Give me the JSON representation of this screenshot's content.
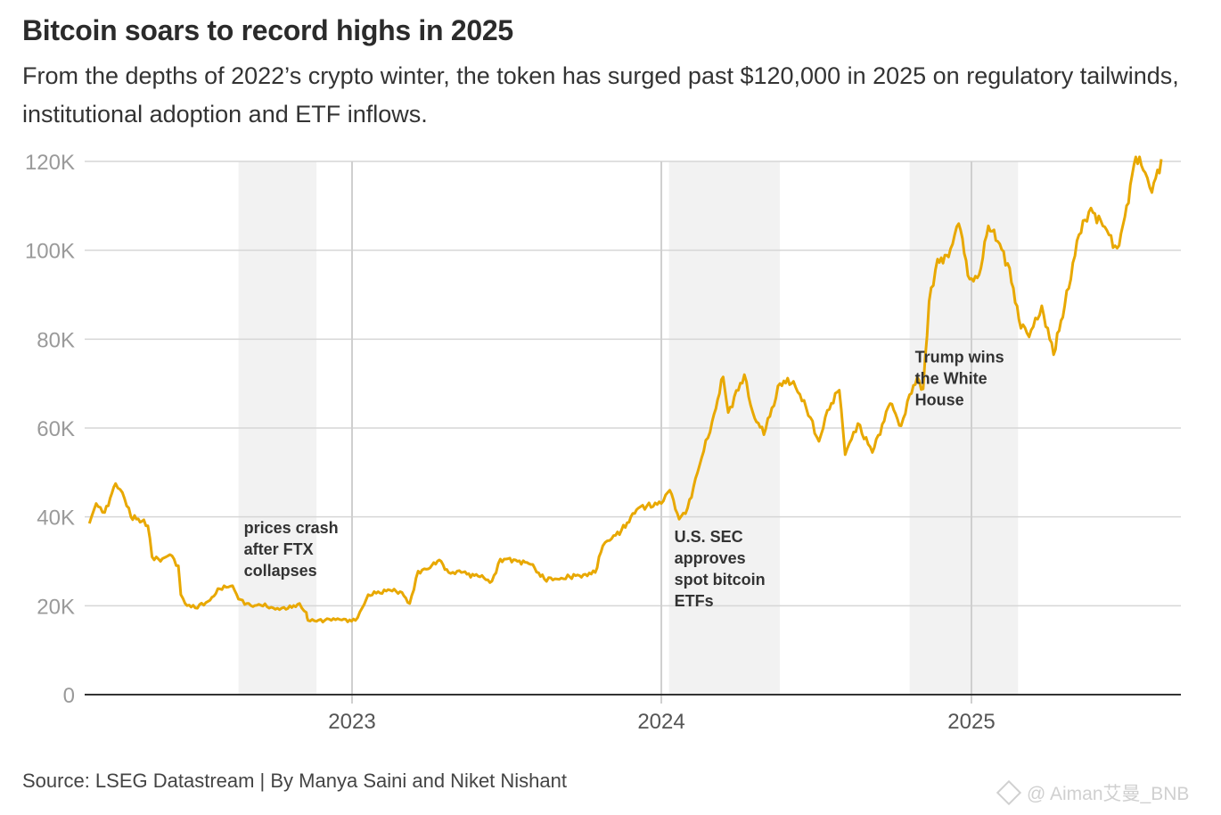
{
  "title": "Bitcoin soars to record highs in 2025",
  "subtitle": "From the depths of 2022’s crypto winter, the token has surged past $120,000 in 2025 on regulatory tailwinds, institutional adoption and ETF inflows.",
  "source": "Source: LSEG Datastream | By Manya Saini and Niket Nishant",
  "watermark": "@ Aiman艾曼_BNB",
  "watermark_icon": "binance-diamond-icon",
  "colors": {
    "line": "#e8a800",
    "shade": "#f2f2f2",
    "grid": "#d6d6d6",
    "axis": "#333333",
    "tick_text": "#9a9a9a"
  },
  "chart_data": {
    "type": "line",
    "title": "Bitcoin soars to record highs in 2025",
    "ylim": [
      0,
      120000
    ],
    "y_ticks": [
      {
        "value": 0,
        "label": "0"
      },
      {
        "value": 20000,
        "label": "20K"
      },
      {
        "value": 40000,
        "label": "40K"
      },
      {
        "value": 60000,
        "label": "60K"
      },
      {
        "value": 80000,
        "label": "80K"
      },
      {
        "value": 100000,
        "label": "100K"
      },
      {
        "value": 120000,
        "label": "120K"
      }
    ],
    "x_range": [
      "2022-02-20",
      "2025-08-15"
    ],
    "x_ticks": [
      {
        "date": "2023-01-01",
        "label": "2023"
      },
      {
        "date": "2024-01-01",
        "label": "2024"
      },
      {
        "date": "2025-01-01",
        "label": "2025"
      }
    ],
    "grid": true,
    "shaded_periods": [
      {
        "start": "2022-08-20",
        "end": "2022-11-20"
      },
      {
        "start": "2024-01-10",
        "end": "2024-05-20"
      },
      {
        "start": "2024-10-20",
        "end": "2025-02-25"
      }
    ],
    "annotations": [
      {
        "date": "2022-08-20",
        "value": 37500,
        "lines": [
          "prices crash",
          "after FTX",
          "collapses"
        ]
      },
      {
        "date": "2024-01-10",
        "value": 35500,
        "lines": [
          "U.S. SEC",
          "approves",
          "spot bitcoin",
          "ETFs"
        ]
      },
      {
        "date": "2024-10-20",
        "value": 76000,
        "lines": [
          "Trump wins",
          "the White",
          "House"
        ]
      }
    ],
    "series": [
      {
        "color": "#e8a800",
        "x": [
          "2022-02-25",
          "2022-03-05",
          "2022-03-15",
          "2022-03-28",
          "2022-04-05",
          "2022-04-15",
          "2022-04-28",
          "2022-05-05",
          "2022-05-10",
          "2022-05-20",
          "2022-05-31",
          "2022-06-10",
          "2022-06-13",
          "2022-06-18",
          "2022-06-30",
          "2022-07-15",
          "2022-07-29",
          "2022-08-13",
          "2022-08-20",
          "2022-09-06",
          "2022-09-13",
          "2022-09-30",
          "2022-10-15",
          "2022-10-31",
          "2022-11-08",
          "2022-11-10",
          "2022-11-20",
          "2022-12-05",
          "2022-12-20",
          "2023-01-05",
          "2023-01-13",
          "2023-01-20",
          "2023-02-15",
          "2023-03-01",
          "2023-03-10",
          "2023-03-20",
          "2023-04-01",
          "2023-04-14",
          "2023-04-25",
          "2023-05-10",
          "2023-06-01",
          "2023-06-15",
          "2023-06-25",
          "2023-07-13",
          "2023-07-31",
          "2023-08-16",
          "2023-08-31",
          "2023-09-15",
          "2023-10-01",
          "2023-10-15",
          "2023-10-24",
          "2023-11-01",
          "2023-11-15",
          "2023-12-05",
          "2023-12-15",
          "2024-01-01",
          "2024-01-11",
          "2024-01-22",
          "2024-02-01",
          "2024-02-15",
          "2024-03-01",
          "2024-03-14",
          "2024-03-20",
          "2024-04-08",
          "2024-04-18",
          "2024-05-01",
          "2024-05-20",
          "2024-06-05",
          "2024-06-20",
          "2024-07-05",
          "2024-07-15",
          "2024-07-29",
          "2024-08-05",
          "2024-08-20",
          "2024-09-06",
          "2024-09-27",
          "2024-10-10",
          "2024-10-20",
          "2024-10-29",
          "2024-11-05",
          "2024-11-12",
          "2024-11-22",
          "2024-12-05",
          "2024-12-17",
          "2024-12-30",
          "2025-01-10",
          "2025-01-21",
          "2025-02-01",
          "2025-02-15",
          "2025-02-26",
          "2025-03-10",
          "2025-03-25",
          "2025-04-08",
          "2025-04-21",
          "2025-05-08",
          "2025-05-22",
          "2025-06-05",
          "2025-06-22",
          "2025-07-01",
          "2025-07-14",
          "2025-07-25",
          "2025-08-02",
          "2025-08-13"
        ],
        "y": [
          38500,
          43000,
          41000,
          47500,
          45500,
          40000,
          39000,
          38000,
          31000,
          30000,
          31500,
          29000,
          22500,
          20500,
          19500,
          21000,
          23800,
          24500,
          21500,
          19800,
          20300,
          19500,
          19200,
          20500,
          18500,
          16700,
          16500,
          17000,
          16800,
          16700,
          19500,
          22500,
          23500,
          23000,
          20500,
          27800,
          28300,
          30300,
          27500,
          27500,
          26500,
          25500,
          30500,
          30300,
          29300,
          26000,
          26000,
          26500,
          27000,
          27500,
          33500,
          34700,
          37000,
          42000,
          42500,
          43000,
          46000,
          39500,
          42000,
          51500,
          61500,
          71500,
          63500,
          72000,
          63500,
          58500,
          70000,
          70500,
          64500,
          57000,
          64000,
          68500,
          54000,
          61000,
          54500,
          65500,
          60500,
          67500,
          71500,
          68800,
          88500,
          98000,
          98500,
          106000,
          93500,
          94500,
          105500,
          102000,
          96000,
          84500,
          80500,
          87500,
          76500,
          87500,
          103500,
          109500,
          105500,
          100500,
          107500,
          121000,
          117500,
          113000,
          120500
        ]
      }
    ]
  }
}
